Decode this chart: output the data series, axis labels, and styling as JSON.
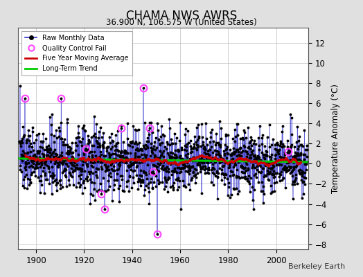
{
  "title": "CHAMA NWS AWRS",
  "subtitle": "36.900 N, 106.575 W (United States)",
  "ylabel": "Temperature Anomaly (°C)",
  "attribution": "Berkeley Earth",
  "year_start": 1893,
  "year_end": 2013,
  "ylim": [
    -8.5,
    13.5
  ],
  "yticks": [
    -8,
    -6,
    -4,
    -2,
    0,
    2,
    4,
    6,
    8,
    10,
    12
  ],
  "xticks": [
    1900,
    1920,
    1940,
    1960,
    1980,
    2000
  ],
  "bg_color": "#e0e0e0",
  "plot_bg_color": "#ffffff",
  "raw_line_color": "#3333cc",
  "raw_marker_color": "#000000",
  "qc_fail_color": "#ff44ff",
  "moving_avg_color": "#cc0000",
  "trend_color": "#00cc00",
  "trend_linewidth": 2.2,
  "moving_avg_linewidth": 2.0,
  "raw_linewidth": 0.7,
  "seed": 137
}
